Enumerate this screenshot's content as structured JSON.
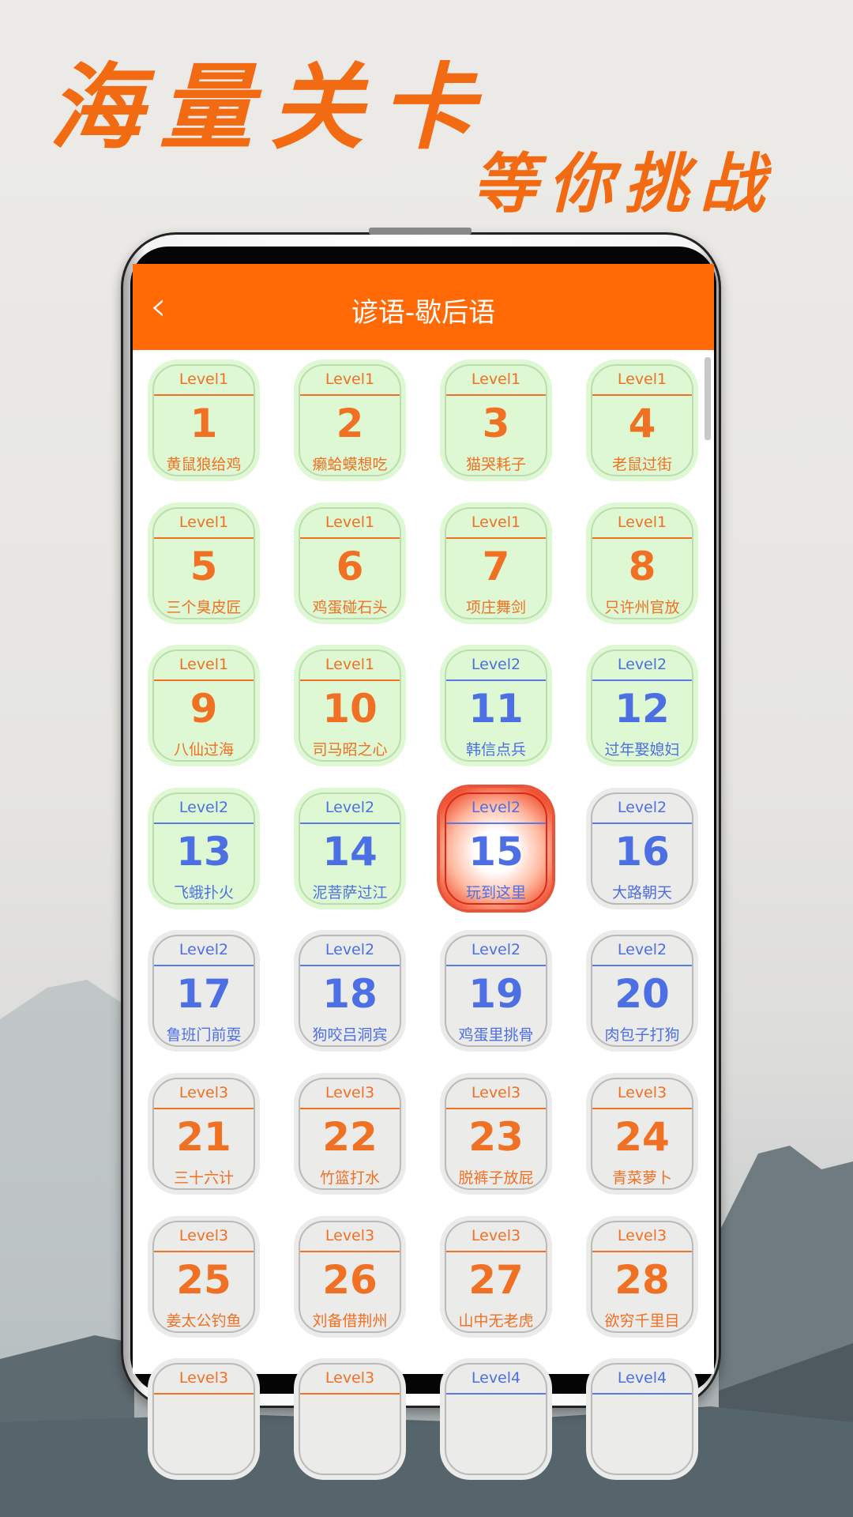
{
  "promo": {
    "line1": "海量关卡",
    "line2": "等你挑战"
  },
  "header": {
    "title": "谚语-歇后语",
    "back_icon": "chevron-left-icon"
  },
  "colors": {
    "accent": "#ff6a06",
    "level_orange": "#f07024",
    "level_blue": "#4d6fe4",
    "done_bg": "#ddf8d2",
    "locked_bg": "#ebebea",
    "current": "#e8543a"
  },
  "levels": [
    {
      "level": "Level1",
      "num": "1",
      "name": "黄鼠狼给鸡",
      "state": "done"
    },
    {
      "level": "Level1",
      "num": "2",
      "name": "癞蛤蟆想吃",
      "state": "done"
    },
    {
      "level": "Level1",
      "num": "3",
      "name": "猫哭耗子",
      "state": "done"
    },
    {
      "level": "Level1",
      "num": "4",
      "name": "老鼠过街",
      "state": "done"
    },
    {
      "level": "Level1",
      "num": "5",
      "name": "三个臭皮匠",
      "state": "done"
    },
    {
      "level": "Level1",
      "num": "6",
      "name": "鸡蛋碰石头",
      "state": "done"
    },
    {
      "level": "Level1",
      "num": "7",
      "name": "项庄舞剑",
      "state": "done"
    },
    {
      "level": "Level1",
      "num": "8",
      "name": "只许州官放",
      "state": "done"
    },
    {
      "level": "Level1",
      "num": "9",
      "name": "八仙过海",
      "state": "done"
    },
    {
      "level": "Level1",
      "num": "10",
      "name": "司马昭之心",
      "state": "done"
    },
    {
      "level": "Level2",
      "num": "11",
      "name": "韩信点兵",
      "state": "done"
    },
    {
      "level": "Level2",
      "num": "12",
      "name": "过年娶媳妇",
      "state": "done"
    },
    {
      "level": "Level2",
      "num": "13",
      "name": "飞蛾扑火",
      "state": "done"
    },
    {
      "level": "Level2",
      "num": "14",
      "name": "泥菩萨过江",
      "state": "done"
    },
    {
      "level": "Level2",
      "num": "15",
      "name": "玩到这里",
      "state": "current"
    },
    {
      "level": "Level2",
      "num": "16",
      "name": "大路朝天",
      "state": "locked"
    },
    {
      "level": "Level2",
      "num": "17",
      "name": "鲁班门前耍",
      "state": "locked"
    },
    {
      "level": "Level2",
      "num": "18",
      "name": "狗咬吕洞宾",
      "state": "locked"
    },
    {
      "level": "Level2",
      "num": "19",
      "name": "鸡蛋里挑骨",
      "state": "locked"
    },
    {
      "level": "Level2",
      "num": "20",
      "name": "肉包子打狗",
      "state": "locked"
    },
    {
      "level": "Level3",
      "num": "21",
      "name": "三十六计",
      "state": "locked"
    },
    {
      "level": "Level3",
      "num": "22",
      "name": "竹篮打水",
      "state": "locked"
    },
    {
      "level": "Level3",
      "num": "23",
      "name": "脱裤子放屁",
      "state": "locked"
    },
    {
      "level": "Level3",
      "num": "24",
      "name": "青菜萝卜",
      "state": "locked"
    },
    {
      "level": "Level3",
      "num": "25",
      "name": "姜太公钓鱼",
      "state": "locked"
    },
    {
      "level": "Level3",
      "num": "26",
      "name": "刘备借荆州",
      "state": "locked"
    },
    {
      "level": "Level3",
      "num": "27",
      "name": "山中无老虎",
      "state": "locked"
    },
    {
      "level": "Level3",
      "num": "28",
      "name": "欲穷千里目",
      "state": "locked"
    },
    {
      "level": "Level3",
      "state": "locked"
    },
    {
      "level": "Level3",
      "state": "locked"
    },
    {
      "level": "Level4",
      "state": "locked"
    },
    {
      "level": "Level4",
      "state": "locked"
    }
  ]
}
